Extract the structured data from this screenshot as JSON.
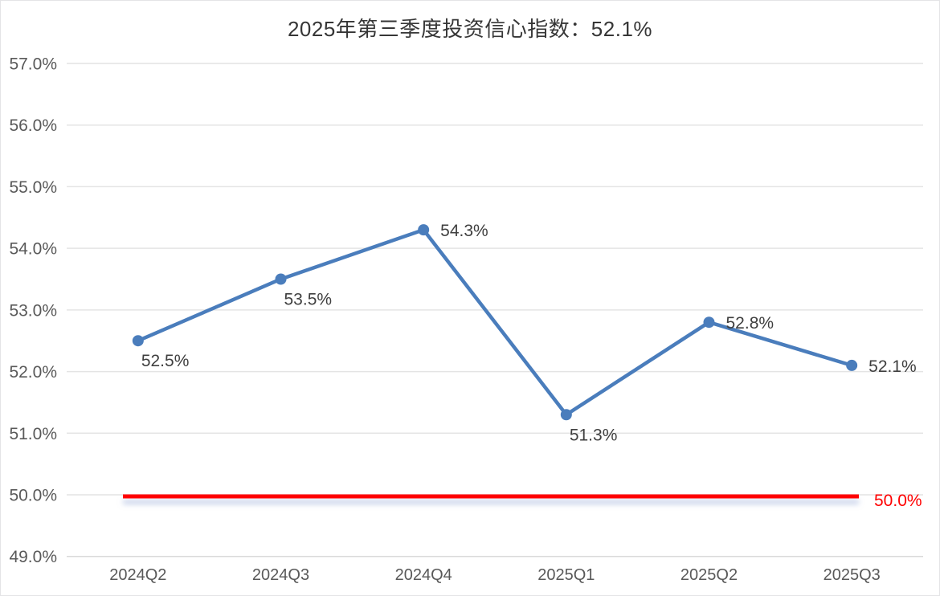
{
  "page": {
    "background": "#ffffff",
    "border_color": "#e4e4e6"
  },
  "chart_data": {
    "type": "line",
    "title": "2025年第三季度投资信心指数：52.1%",
    "categories": [
      "2024Q2",
      "2024Q3",
      "2024Q4",
      "2025Q1",
      "2025Q2",
      "2025Q3"
    ],
    "series": [
      {
        "values": [
          52.5,
          53.5,
          54.3,
          51.3,
          52.8,
          52.1
        ],
        "color": "#4a7dbc",
        "marker": "circle"
      }
    ],
    "point_labels": [
      "52.5%",
      "53.5%",
      "54.3%",
      "51.3%",
      "52.8%",
      "52.1%"
    ],
    "point_label_positions": [
      "below",
      "below",
      "right",
      "below",
      "right",
      "right"
    ],
    "xlabel": "",
    "ylabel": "",
    "ylim": [
      49,
      57
    ],
    "y_tick_step": 1,
    "y_tick_labels": [
      "57.0%",
      "56.0%",
      "55.0%",
      "54.0%",
      "53.0%",
      "52.0%",
      "51.0%",
      "50.0%",
      "49.0%"
    ],
    "grid": true,
    "gridline_color": "#e4e4e4",
    "baseline_color": "#d9d9d9",
    "axis_label_color": "#595959",
    "data_label_color": "#3f3f3f",
    "title_color": "#363636",
    "legend": "none",
    "reference_line": {
      "value": 50.0,
      "label": "50.0%",
      "color": "#ff0000"
    }
  }
}
